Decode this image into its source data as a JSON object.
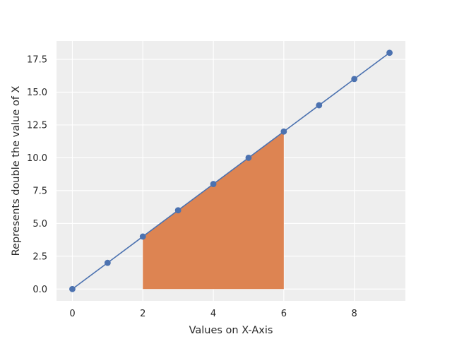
{
  "chart_data": {
    "type": "line",
    "title": "",
    "xlabel": "Values on X-Axis",
    "ylabel": "Represents double the value of X",
    "xlim": [
      -0.45,
      9.45
    ],
    "ylim": [
      -0.9,
      18.9
    ],
    "x_ticks": [
      0,
      2,
      4,
      6,
      8
    ],
    "x_tick_labels": [
      "0",
      "2",
      "4",
      "6",
      "8"
    ],
    "y_ticks": [
      0,
      2.5,
      5,
      7.5,
      10,
      12.5,
      15,
      17.5
    ],
    "y_tick_labels": [
      "0.0",
      "2.5",
      "5.0",
      "7.5",
      "10.0",
      "12.5",
      "15.0",
      "17.5"
    ],
    "grid": true,
    "series": [
      {
        "x": [
          0,
          1,
          2,
          3,
          4,
          5,
          6,
          7,
          8,
          9
        ],
        "values": [
          0,
          2,
          4,
          6,
          8,
          10,
          12,
          14,
          16,
          18
        ],
        "color": "#4c72b0",
        "marker": "circle"
      }
    ],
    "fill_region": {
      "x_start": 2,
      "x_end": 6,
      "color": "#dd8452"
    },
    "colors": {
      "plot_background": "#eeeeee",
      "grid": "#ffffff"
    }
  }
}
